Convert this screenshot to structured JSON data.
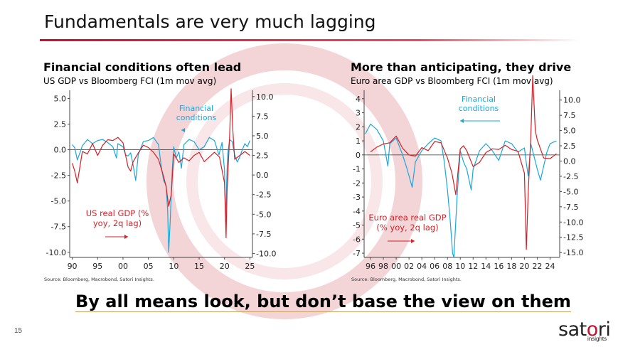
{
  "slide": {
    "title": "Fundamentals are very much lagging",
    "headline": "By all means look, but don’t base the view on them",
    "page_number": "15",
    "logo": {
      "part1": "sat",
      "part2": "o",
      "part3": "ri",
      "sub": "insights"
    },
    "colors": {
      "accent": "#c8102e",
      "fci": "#1aa7dd",
      "gdp": "#d61f26"
    }
  },
  "chart_data": [
    {
      "type": "line",
      "title": "Financial conditions often lead",
      "subtitle": "US GDP vs Bloomberg FCI (1m mov avg)",
      "source": "Source: Bloomberg, Macrobond, Satori Insights.",
      "x_ticks": [
        "90",
        "95",
        "00",
        "05",
        "10",
        "15",
        "20",
        "25"
      ],
      "x_tick_years": [
        1990,
        1995,
        2000,
        2005,
        2010,
        2015,
        2020,
        2025
      ],
      "xlim": [
        1989.5,
        2025.5
      ],
      "ylim_left": [
        -10.5,
        5.8
      ],
      "ylim_right": [
        -10.5,
        10.8
      ],
      "y_ticks_left": [
        "5.0",
        "2.5",
        "0.0",
        "-2.5",
        "-5.0",
        "-7.5",
        "-10.0"
      ],
      "y_tick_values_left": [
        5,
        2.5,
        0,
        -2.5,
        -5,
        -7.5,
        -10
      ],
      "y_ticks_right": [
        "10.0",
        "7.5",
        "5.0",
        "2.5",
        "0.0",
        "-2.5",
        "-5.0",
        "-7.5",
        "-10.0"
      ],
      "y_tick_values_right": [
        10,
        7.5,
        5,
        2.5,
        0,
        -2.5,
        -5,
        -7.5,
        -10
      ],
      "annotations": {
        "fci_label": [
          "Financial",
          "conditions"
        ],
        "gdp_label": [
          "US real GDP (%",
          "yoy, 2q lag)"
        ]
      },
      "series": [
        {
          "name": "Financial conditions",
          "axis": "left",
          "color": "#1aa7dd",
          "x": [
            1990,
            1990.5,
            1991,
            1991.5,
            1992,
            1993,
            1994,
            1995,
            1996,
            1997,
            1998,
            1998.7,
            1999,
            2000,
            2000.5,
            2001,
            2001.5,
            2002,
            2002.5,
            2003,
            2004,
            2005,
            2006,
            2007,
            2007.5,
            2008,
            2008.5,
            2008.8,
            2009,
            2009.3,
            2009.7,
            2010,
            2010.5,
            2011,
            2011.5,
            2012,
            2013,
            2014,
            2015,
            2016,
            2017,
            2018,
            2018.9,
            2019.5,
            2020,
            2020.2,
            2020.4,
            2020.6,
            2021,
            2021.5,
            2022,
            2022.5,
            2023,
            2023.5,
            2024,
            2024.5,
            2025
          ],
          "values": [
            0.5,
            0.2,
            -1.0,
            -0.3,
            0.4,
            1.0,
            0.6,
            0.9,
            1.0,
            0.7,
            0.3,
            -0.8,
            0.6,
            0.3,
            -0.5,
            -0.6,
            -0.3,
            -1.5,
            -3.0,
            -0.5,
            0.8,
            0.9,
            1.2,
            0.5,
            -1.5,
            -3.0,
            -3.5,
            -6.0,
            -10.0,
            -7.0,
            -2.0,
            0.3,
            -0.8,
            -0.2,
            -1.8,
            0.5,
            1.0,
            0.8,
            0.0,
            0.3,
            1.2,
            0.9,
            -0.5,
            0.7,
            -2.0,
            -7.0,
            -3.5,
            -0.5,
            1.0,
            0.8,
            -0.5,
            -1.2,
            -0.7,
            0.0,
            0.6,
            0.3,
            0.9
          ]
        },
        {
          "name": "US real GDP (% yoy, 2q lag)",
          "axis": "right",
          "color": "#d61f26",
          "x": [
            1990,
            1990.5,
            1991,
            1991.5,
            1992,
            1993,
            1994,
            1995,
            1996,
            1997,
            1998,
            1999,
            2000,
            2001,
            2001.5,
            2002,
            2003,
            2004,
            2005,
            2006,
            2007,
            2008,
            2008.5,
            2009,
            2009.5,
            2010,
            2011,
            2012,
            2013,
            2014,
            2015,
            2016,
            2017,
            2018,
            2019,
            2020,
            2020.3,
            2020.5,
            2021,
            2021.3,
            2021.6,
            2022,
            2023,
            2024,
            2025
          ],
          "values": [
            1.5,
            0.5,
            -1.0,
            1.0,
            3.0,
            2.7,
            4.0,
            2.5,
            3.8,
            4.5,
            4.4,
            4.8,
            4.1,
            1.0,
            0.5,
            1.7,
            2.8,
            3.8,
            3.5,
            2.9,
            2.0,
            -0.2,
            -1.5,
            -4.0,
            -2.5,
            2.7,
            1.6,
            2.2,
            1.8,
            2.5,
            2.9,
            1.7,
            2.3,
            2.9,
            2.3,
            -1.0,
            -8.0,
            -2.0,
            5.0,
            11.0,
            6.0,
            2.0,
            2.5,
            3.0,
            2.5
          ]
        }
      ]
    },
    {
      "type": "line",
      "title": "More than anticipating, they drive",
      "subtitle": "Euro area GDP vs Bloomberg FCI (1m mov avg)",
      "source": "Source: Bloomberg, Macrobond, Satori Insights.",
      "x_ticks": [
        "96",
        "98",
        "00",
        "02",
        "04",
        "06",
        "08",
        "10",
        "12",
        "14",
        "16",
        "18",
        "20",
        "22",
        "24"
      ],
      "x_tick_years": [
        1996,
        1998,
        2000,
        2002,
        2004,
        2006,
        2008,
        2010,
        2012,
        2014,
        2016,
        2018,
        2020,
        2022,
        2024
      ],
      "xlim": [
        1995,
        2025.5
      ],
      "ylim_left": [
        -7.3,
        4.6
      ],
      "ylim_right": [
        -15.8,
        11.6
      ],
      "y_ticks_left": [
        "4",
        "3",
        "2",
        "1",
        "0",
        "-1",
        "-2",
        "-3",
        "-4",
        "-5",
        "-6",
        "-7"
      ],
      "y_tick_values_left": [
        4,
        3,
        2,
        1,
        0,
        -1,
        -2,
        -3,
        -4,
        -5,
        -6,
        -7
      ],
      "y_ticks_right": [
        "10.0",
        "7.5",
        "5.0",
        "2.5",
        "0.0",
        "-2.5",
        "-5.0",
        "-7.5",
        "-10.0",
        "-12.5",
        "-15.0"
      ],
      "y_tick_values_right": [
        10,
        7.5,
        5,
        2.5,
        0,
        -2.5,
        -5,
        -7.5,
        -10,
        -12.5,
        -15
      ],
      "annotations": {
        "fci_label": [
          "Financial",
          "conditions"
        ],
        "gdp_label": [
          "Euro area real GDP",
          "(% yoy, 2q lag)"
        ]
      },
      "series": [
        {
          "name": "Financial conditions",
          "axis": "left",
          "color": "#1aa7dd",
          "x": [
            1995.2,
            1996,
            1997,
            1998,
            1998.7,
            1999,
            2000,
            2001,
            2001.7,
            2002.5,
            2003,
            2004,
            2005,
            2006,
            2007,
            2007.5,
            2008,
            2008.4,
            2008.8,
            2009,
            2009.5,
            2010,
            2010.5,
            2011,
            2011.7,
            2012,
            2013,
            2014,
            2015,
            2016,
            2017,
            2018,
            2019,
            2020,
            2020.3,
            2020.6,
            2021,
            2022,
            2022.5,
            2023,
            2023.5,
            2024,
            2025
          ],
          "values": [
            1.5,
            2.2,
            1.8,
            1.0,
            -0.8,
            0.8,
            1.2,
            0.0,
            -1.0,
            -2.3,
            -0.5,
            0.3,
            0.8,
            1.2,
            1.0,
            -0.5,
            -2.5,
            -4.5,
            -7.0,
            -7.3,
            -3.0,
            0.3,
            -0.5,
            -1.0,
            -2.5,
            -1.0,
            0.3,
            0.8,
            0.3,
            -0.4,
            1.0,
            0.8,
            0.2,
            0.5,
            -0.6,
            -1.5,
            0.8,
            -1.0,
            -1.8,
            -0.8,
            0.2,
            0.8,
            1.0
          ]
        },
        {
          "name": "Euro area real GDP (% yoy, 2q lag)",
          "axis": "right",
          "color": "#d61f26",
          "x": [
            1996,
            1997,
            1998,
            1999,
            2000,
            2001,
            2002,
            2003,
            2004,
            2005,
            2006,
            2007,
            2008,
            2008.7,
            2009.3,
            2010,
            2010.5,
            2011,
            2012,
            2013,
            2014,
            2015,
            2016,
            2017,
            2018,
            2019,
            2020,
            2020.3,
            2020.6,
            2021,
            2021.3,
            2021.7,
            2022,
            2023,
            2024,
            2025
          ],
          "values": [
            1.5,
            2.3,
            2.8,
            3.0,
            4.1,
            2.1,
            1.0,
            0.8,
            2.2,
            1.7,
            3.2,
            3.0,
            0.5,
            -2.0,
            -5.5,
            2.0,
            2.5,
            1.7,
            -0.9,
            -0.2,
            1.4,
            2.0,
            1.9,
            2.6,
            1.9,
            1.6,
            -2.0,
            -14.5,
            -5.0,
            4.0,
            14.0,
            5.0,
            3.5,
            0.5,
            0.4,
            1.2
          ]
        }
      ]
    }
  ]
}
